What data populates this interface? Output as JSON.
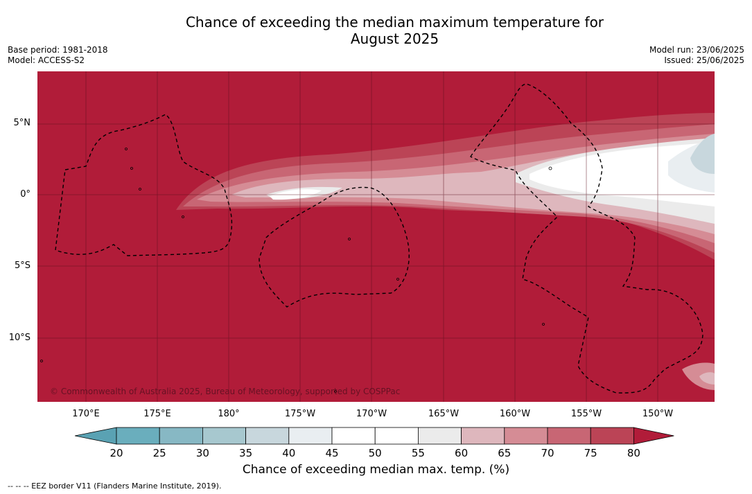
{
  "title_line1": "Chance of exceeding the median maximum temperature for",
  "title_line2": "August 2025",
  "meta_left": {
    "base_period": "Base period: 1981-2018",
    "model": "Model: ACCESS-S2"
  },
  "meta_right": {
    "model_run": "Model run: 23/06/2025",
    "issued": "Issued: 25/06/2025"
  },
  "lat_labels": [
    "5°N",
    "0°",
    "5°S",
    "10°S"
  ],
  "lon_labels": [
    "170°E",
    "175°E",
    "180°",
    "175°W",
    "170°W",
    "165°W",
    "160°W",
    "155°W",
    "150°W"
  ],
  "copyright": "© Commonwealth of Australia 2025, Bureau of Meteorology, supported by COSPPac",
  "colorbar": {
    "ticks": [
      "20",
      "25",
      "30",
      "35",
      "40",
      "45",
      "50",
      "55",
      "60",
      "65",
      "70",
      "75",
      "80"
    ],
    "colors": [
      "#6aaebd",
      "#87b8c4",
      "#a7c8cf",
      "#c8d7dd",
      "#e9eef1",
      "#ffffff",
      "#ffffff",
      "#ebebeb",
      "#deb7bd",
      "#d58c95",
      "#c86674",
      "#bb4456"
    ],
    "under_color": "#5aa2b3",
    "over_color": "#b11c39",
    "title": "Chance of exceeding median max. temp. (%)"
  },
  "footnote": "--  --  -- EEZ border V11 (Flanders Marine Institute, 2019)."
}
